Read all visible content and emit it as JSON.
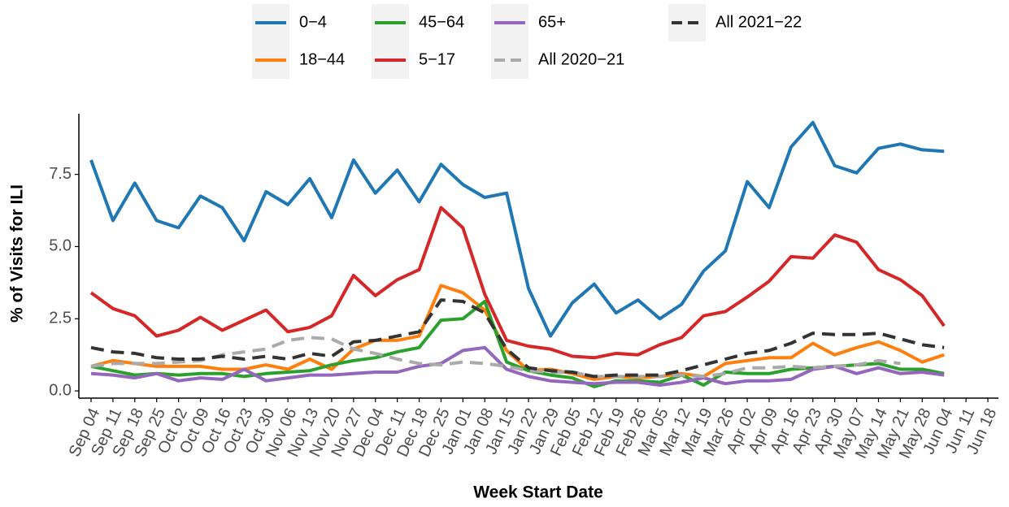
{
  "chart_data": {
    "type": "line",
    "x_label": "Week Start Date",
    "y_label": "% of Visits for ILI",
    "categories": [
      "Sep 04",
      "Sep 11",
      "Sep 18",
      "Sep 25",
      "Oct 02",
      "Oct 09",
      "Oct 16",
      "Oct 23",
      "Oct 30",
      "Nov 06",
      "Nov 13",
      "Nov 20",
      "Nov 27",
      "Dec 04",
      "Dec 11",
      "Dec 18",
      "Dec 25",
      "Jan 01",
      "Jan 08",
      "Jan 15",
      "Jan 22",
      "Jan 29",
      "Feb 05",
      "Feb 12",
      "Feb 19",
      "Feb 26",
      "Mar 05",
      "Mar 12",
      "Mar 19",
      "Mar 26",
      "Apr 02",
      "Apr 09",
      "Apr 16",
      "Apr 23",
      "Apr 30",
      "May 07",
      "May 14",
      "May 21",
      "May 28",
      "Jun 04",
      "Jun 11",
      "Jun 18"
    ],
    "ylim": [
      -0.25,
      9.6
    ],
    "yticks": [
      {
        "value": 0,
        "label": "0.0"
      },
      {
        "value": 2.5,
        "label": "2.5"
      },
      {
        "value": 5,
        "label": "5.0"
      },
      {
        "value": 7.5,
        "label": "7.5"
      }
    ],
    "series": [
      {
        "name": "0−4",
        "color": "#1f77b4",
        "dashed": false,
        "values": [
          8.0,
          5.9,
          7.2,
          5.9,
          5.65,
          6.75,
          6.35,
          5.2,
          6.9,
          6.45,
          7.35,
          6.0,
          8.0,
          6.85,
          7.65,
          6.55,
          7.85,
          7.15,
          6.7,
          6.85,
          3.55,
          1.9,
          3.05,
          3.7,
          2.7,
          3.15,
          2.5,
          3.0,
          4.15,
          4.85,
          7.25,
          6.35,
          8.45,
          9.3,
          7.8,
          7.55,
          8.4,
          8.55,
          8.35,
          8.3,
          null,
          null
        ]
      },
      {
        "name": "18−44",
        "color": "#ff7f0e",
        "dashed": false,
        "values": [
          0.85,
          1.05,
          0.95,
          0.85,
          0.85,
          0.85,
          0.75,
          0.75,
          0.9,
          0.75,
          1.1,
          0.75,
          1.45,
          1.75,
          1.75,
          1.9,
          3.65,
          3.4,
          2.8,
          1.4,
          0.7,
          0.75,
          0.6,
          0.4,
          0.5,
          0.45,
          0.5,
          0.6,
          0.5,
          0.95,
          1.05,
          1.15,
          1.15,
          1.65,
          1.25,
          1.5,
          1.7,
          1.4,
          1.0,
          1.25,
          null,
          null
        ]
      },
      {
        "name": "45−64",
        "color": "#2ca02c",
        "dashed": false,
        "values": [
          0.85,
          0.7,
          0.55,
          0.6,
          0.55,
          0.6,
          0.6,
          0.5,
          0.6,
          0.65,
          0.7,
          0.9,
          1.05,
          1.15,
          1.35,
          1.5,
          2.45,
          2.5,
          3.1,
          1.0,
          0.7,
          0.55,
          0.45,
          0.15,
          0.35,
          0.35,
          0.3,
          0.55,
          0.2,
          0.65,
          0.6,
          0.6,
          0.75,
          0.8,
          0.85,
          0.9,
          0.95,
          0.75,
          0.75,
          0.6,
          null,
          null
        ]
      },
      {
        "name": "5−17",
        "color": "#d62728",
        "dashed": false,
        "values": [
          3.4,
          2.85,
          2.6,
          1.9,
          2.1,
          2.55,
          2.1,
          2.45,
          2.8,
          2.05,
          2.2,
          2.6,
          4.0,
          3.3,
          3.85,
          4.2,
          6.35,
          5.65,
          3.35,
          1.75,
          1.55,
          1.45,
          1.2,
          1.15,
          1.3,
          1.25,
          1.6,
          1.85,
          2.6,
          2.75,
          3.25,
          3.8,
          4.65,
          4.6,
          5.4,
          5.15,
          4.2,
          3.85,
          3.3,
          2.25,
          null,
          null
        ]
      },
      {
        "name": "65+",
        "color": "#9467bd",
        "dashed": false,
        "values": [
          0.6,
          0.55,
          0.45,
          0.6,
          0.35,
          0.45,
          0.4,
          0.75,
          0.35,
          0.45,
          0.55,
          0.55,
          0.6,
          0.65,
          0.65,
          0.85,
          0.95,
          1.4,
          1.5,
          0.75,
          0.5,
          0.35,
          0.3,
          0.25,
          0.3,
          0.3,
          0.2,
          0.3,
          0.45,
          0.25,
          0.35,
          0.35,
          0.4,
          0.75,
          0.85,
          0.6,
          0.8,
          0.6,
          0.65,
          0.55,
          null,
          null
        ]
      },
      {
        "name": "All 2020−21",
        "color": "#aaaaaa",
        "dashed": true,
        "values": [
          0.85,
          0.95,
          0.95,
          0.95,
          1.0,
          1.05,
          1.25,
          1.35,
          1.45,
          1.75,
          1.85,
          1.8,
          1.45,
          1.3,
          1.1,
          0.95,
          0.9,
          1.0,
          0.95,
          0.85,
          0.7,
          0.65,
          0.65,
          0.5,
          0.5,
          0.5,
          0.5,
          0.55,
          0.5,
          0.6,
          0.8,
          0.8,
          0.85,
          0.8,
          0.85,
          0.9,
          1.05,
          0.95,
          null,
          null,
          null,
          null
        ]
      },
      {
        "name": "All 2021−22",
        "color": "#333333",
        "dashed": true,
        "values": [
          1.5,
          1.35,
          1.3,
          1.15,
          1.1,
          1.1,
          1.2,
          1.1,
          1.2,
          1.1,
          1.3,
          1.2,
          1.7,
          1.75,
          1.9,
          2.05,
          3.15,
          3.1,
          2.7,
          1.45,
          0.8,
          0.7,
          0.65,
          0.5,
          0.55,
          0.55,
          0.55,
          0.7,
          0.9,
          1.1,
          1.3,
          1.4,
          1.65,
          2.0,
          1.95,
          1.95,
          2.0,
          1.8,
          1.6,
          1.5,
          null,
          null
        ]
      }
    ]
  }
}
